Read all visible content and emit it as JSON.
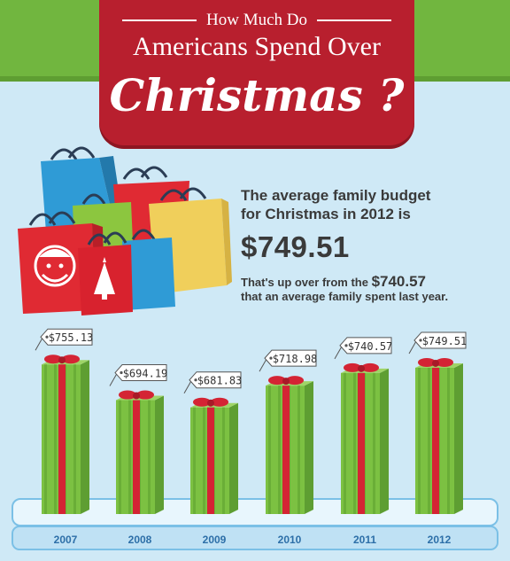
{
  "header": {
    "title_line1": "How Much Do",
    "title_line2": "Americans Spend Over",
    "title_line3": "Christmas ?"
  },
  "summary": {
    "lead_line1": "The average family budget",
    "lead_line2": "for Christmas in 2012 is",
    "amount": "$749.51",
    "sub_pre": "That's up over from the ",
    "sub_amount": "$740.57",
    "sub_post": "that an average family spent last year."
  },
  "colors": {
    "banner_red": "#b81f2e",
    "band_green": "#71b63f",
    "gift_green": "#7cc142",
    "ribbon_red": "#d42434",
    "background_blue": "#cfe9f6",
    "tick_blue": "#2d6fa8"
  },
  "chart_data": {
    "type": "bar",
    "title": "",
    "xlabel": "",
    "ylabel": "",
    "categories": [
      "2007",
      "2008",
      "2009",
      "2010",
      "2011",
      "2012"
    ],
    "values": [
      755.13,
      694.19,
      681.83,
      718.98,
      740.57,
      749.51
    ],
    "value_labels": [
      "$755.13",
      "$694.19",
      "$681.83",
      "$718.98",
      "$740.57",
      "$749.51"
    ],
    "ylim": [
      500,
      760
    ],
    "grid": false,
    "legend": "none"
  }
}
